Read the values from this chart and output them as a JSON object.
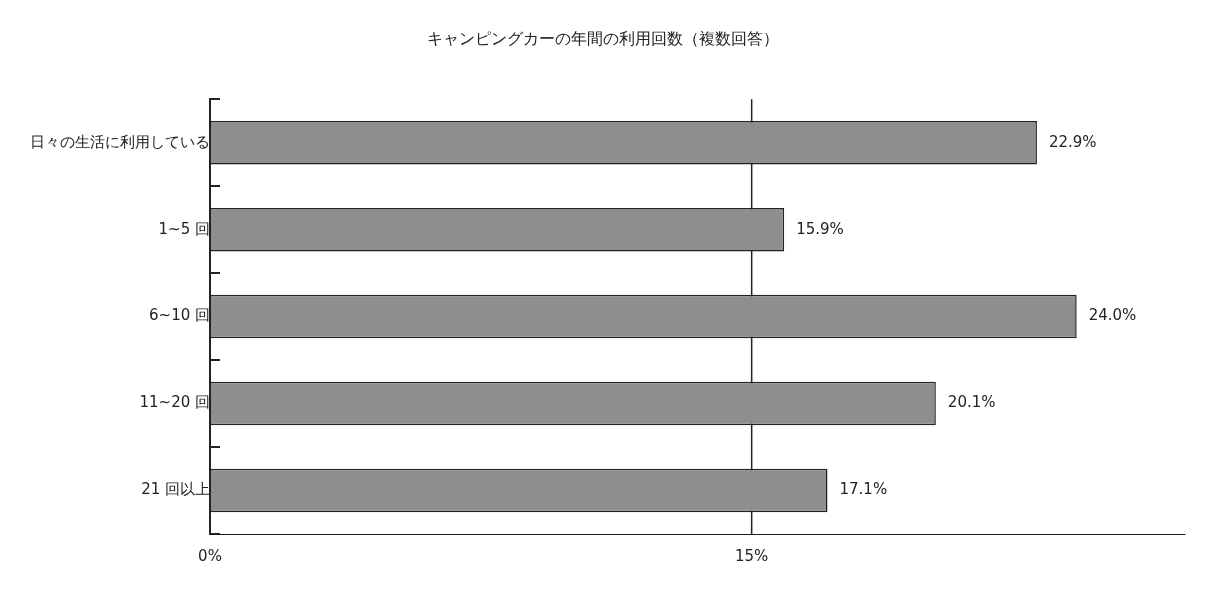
{
  "chart_data": {
    "type": "bar",
    "orientation": "horizontal",
    "title": "キャンピングカーの年間の利用回数（複数回答）",
    "categories": [
      "日々の生活に利用している",
      "1~5 回",
      "6~10 回",
      "11~20 回",
      "21 回以上"
    ],
    "values": [
      22.9,
      15.9,
      24.0,
      20.1,
      17.1
    ],
    "value_labels": [
      "22.9%",
      "15.9%",
      "24.0%",
      "20.1%",
      "17.1%"
    ],
    "color": "#8e8e8e",
    "xlim": [
      0,
      27
    ],
    "xticks": [
      {
        "value": 0,
        "label": "0%"
      },
      {
        "value": 15,
        "label": "15%"
      }
    ],
    "ref_lines": [
      {
        "axis": "x",
        "value": 15
      }
    ],
    "legend": false
  }
}
